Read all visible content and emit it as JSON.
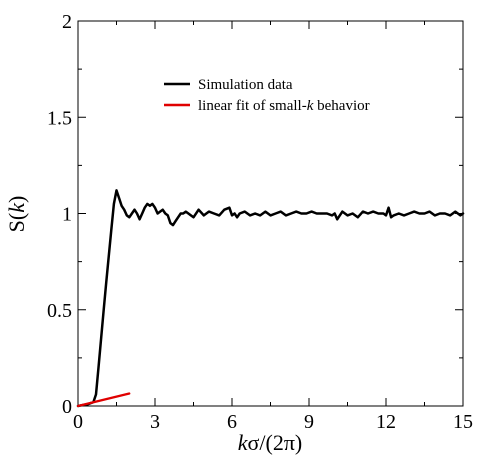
{
  "chart_data": {
    "type": "line",
    "title": "",
    "xlabel": "kσ/(2π)",
    "ylabel": "S(k)",
    "xlim": [
      0,
      15
    ],
    "ylim": [
      0,
      2
    ],
    "xticks": [
      0,
      3,
      6,
      9,
      12,
      15
    ],
    "yticks": [
      0,
      0.5,
      1,
      1.5,
      2
    ],
    "xtick_labels": [
      "0",
      "3",
      "6",
      "9",
      "12",
      "15"
    ],
    "ytick_labels": [
      "0",
      "0.5",
      "1",
      "1.5",
      "2"
    ],
    "grid": false,
    "legend_position": "top-center",
    "series": [
      {
        "name": "Simulation data",
        "color": "#000000",
        "x": [
          0,
          0.2,
          0.4,
          0.6,
          0.7,
          0.8,
          0.9,
          1.0,
          1.1,
          1.2,
          1.3,
          1.4,
          1.5,
          1.6,
          1.7,
          1.8,
          1.9,
          2.0,
          2.1,
          2.2,
          2.3,
          2.4,
          2.5,
          2.6,
          2.7,
          2.8,
          2.9,
          3.0,
          3.1,
          3.2,
          3.3,
          3.4,
          3.5,
          3.6,
          3.7,
          3.8,
          3.9,
          4.0,
          4.1,
          4.2,
          4.3,
          4.4,
          4.5,
          4.7,
          4.9,
          5.1,
          5.3,
          5.5,
          5.7,
          5.9,
          6.0,
          6.1,
          6.2,
          6.3,
          6.5,
          6.7,
          6.9,
          7.1,
          7.3,
          7.5,
          7.7,
          7.9,
          8.1,
          8.3,
          8.5,
          8.7,
          8.9,
          9.1,
          9.3,
          9.5,
          9.7,
          9.9,
          10.0,
          10.1,
          10.3,
          10.5,
          10.7,
          10.9,
          11.1,
          11.3,
          11.5,
          11.7,
          11.9,
          12.0,
          12.1,
          12.2,
          12.3,
          12.5,
          12.7,
          12.9,
          13.1,
          13.3,
          13.5,
          13.7,
          13.9,
          14.1,
          14.3,
          14.5,
          14.7,
          14.9,
          15.0
        ],
        "y": [
          0.0,
          0.005,
          0.01,
          0.02,
          0.06,
          0.2,
          0.35,
          0.5,
          0.64,
          0.78,
          0.92,
          1.05,
          1.12,
          1.08,
          1.04,
          1.02,
          0.99,
          0.98,
          1.0,
          1.02,
          1.0,
          0.97,
          1.0,
          1.03,
          1.05,
          1.04,
          1.05,
          1.03,
          1.0,
          1.01,
          1.02,
          1.0,
          0.99,
          0.95,
          0.94,
          0.96,
          0.98,
          1.0,
          1.0,
          1.01,
          1.0,
          0.99,
          0.98,
          1.02,
          0.99,
          1.01,
          1.0,
          0.99,
          1.02,
          1.03,
          0.99,
          1.0,
          0.98,
          1.0,
          1.01,
          0.99,
          1.0,
          0.99,
          1.01,
          0.99,
          1.0,
          1.01,
          0.99,
          1.0,
          1.01,
          1.0,
          1.0,
          1.01,
          1.0,
          1.0,
          1.0,
          0.99,
          1.0,
          0.97,
          1.01,
          0.99,
          1.0,
          0.98,
          1.01,
          1.0,
          1.01,
          1.0,
          1.0,
          0.99,
          1.03,
          0.98,
          0.99,
          1.0,
          0.99,
          1.0,
          1.01,
          1.0,
          1.0,
          1.01,
          0.99,
          1.0,
          1.0,
          0.99,
          1.01,
          0.99,
          1.0
        ]
      },
      {
        "name": "linear fit of small-k behavior",
        "color": "#e00000",
        "x": [
          0,
          2.0
        ],
        "y": [
          0,
          0.065
        ]
      }
    ]
  }
}
